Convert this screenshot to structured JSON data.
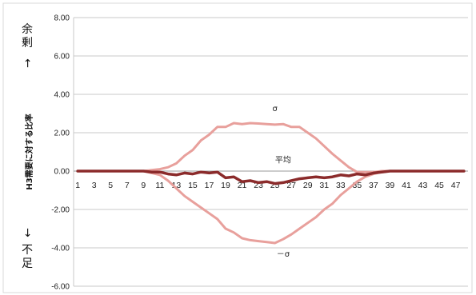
{
  "chart_data": {
    "type": "line",
    "title": "",
    "xlabel": "",
    "ylabel": "H3需要に対する比率",
    "ylim": [
      -6,
      8
    ],
    "yticks": [
      "8.00",
      "6.00",
      "4.00",
      "2.00",
      "0.00",
      "-2.00",
      "-4.00",
      "-6.00"
    ],
    "x": [
      1,
      2,
      3,
      4,
      5,
      6,
      7,
      8,
      9,
      10,
      11,
      12,
      13,
      14,
      15,
      16,
      17,
      18,
      19,
      20,
      21,
      22,
      23,
      24,
      25,
      26,
      27,
      28,
      29,
      30,
      31,
      32,
      33,
      34,
      35,
      36,
      37,
      38,
      39,
      40,
      41,
      42,
      43,
      44,
      45,
      46,
      47,
      48
    ],
    "xtick_labels": [
      "1",
      "3",
      "5",
      "7",
      "9",
      "11",
      "13",
      "15",
      "17",
      "19",
      "21",
      "23",
      "25",
      "27",
      "29",
      "31",
      "33",
      "35",
      "37",
      "39",
      "41",
      "43",
      "45",
      "47"
    ],
    "grid": true,
    "legend": "none",
    "series": [
      {
        "name": "σ",
        "color": "#e8a09c",
        "values": [
          0,
          0,
          0,
          0,
          0,
          0,
          0,
          0,
          0,
          0.05,
          0.1,
          0.2,
          0.4,
          0.8,
          1.1,
          1.6,
          1.9,
          2.3,
          2.3,
          2.5,
          2.45,
          2.5,
          2.48,
          2.45,
          2.42,
          2.45,
          2.3,
          2.3,
          2.0,
          1.7,
          1.3,
          0.9,
          0.55,
          0.2,
          -0.05,
          -0.05,
          -0.05,
          0,
          0,
          0,
          0,
          0,
          0,
          0,
          0,
          0,
          0,
          0
        ]
      },
      {
        "name": "平均",
        "color": "#8b2b2b",
        "values": [
          0,
          0,
          0,
          0,
          0,
          0,
          0,
          0,
          0,
          -0.05,
          -0.05,
          -0.15,
          -0.2,
          -0.1,
          -0.15,
          -0.05,
          -0.1,
          -0.05,
          -0.35,
          -0.3,
          -0.55,
          -0.5,
          -0.6,
          -0.55,
          -0.65,
          -0.6,
          -0.5,
          -0.4,
          -0.35,
          -0.3,
          -0.35,
          -0.3,
          -0.2,
          -0.25,
          -0.15,
          -0.2,
          -0.1,
          -0.05,
          0,
          0,
          0,
          0,
          0,
          0,
          0,
          0,
          0,
          0
        ]
      },
      {
        "name": "－σ",
        "color": "#e8a09c",
        "values": [
          0,
          0,
          0,
          0,
          0,
          0,
          0,
          0,
          0,
          -0.1,
          -0.2,
          -0.5,
          -0.9,
          -1.3,
          -1.6,
          -1.9,
          -2.2,
          -2.5,
          -3.0,
          -3.2,
          -3.5,
          -3.6,
          -3.65,
          -3.7,
          -3.75,
          -3.55,
          -3.3,
          -3.0,
          -2.7,
          -2.4,
          -2.0,
          -1.7,
          -1.25,
          -0.9,
          -0.55,
          -0.3,
          -0.15,
          -0.05,
          0,
          0,
          0,
          0,
          0,
          0,
          0,
          0,
          0,
          0
        ]
      }
    ],
    "annotations": [
      {
        "text": "σ",
        "x": 25,
        "y": 3.3
      },
      {
        "text": "平均",
        "x": 26,
        "y": 0.6
      },
      {
        "text": "－σ",
        "x": 26,
        "y": -4.3
      }
    ],
    "side_labels": {
      "top": "余剰",
      "top_arrow": "→",
      "bottom_arrow": "←",
      "bottom": "不足"
    }
  }
}
